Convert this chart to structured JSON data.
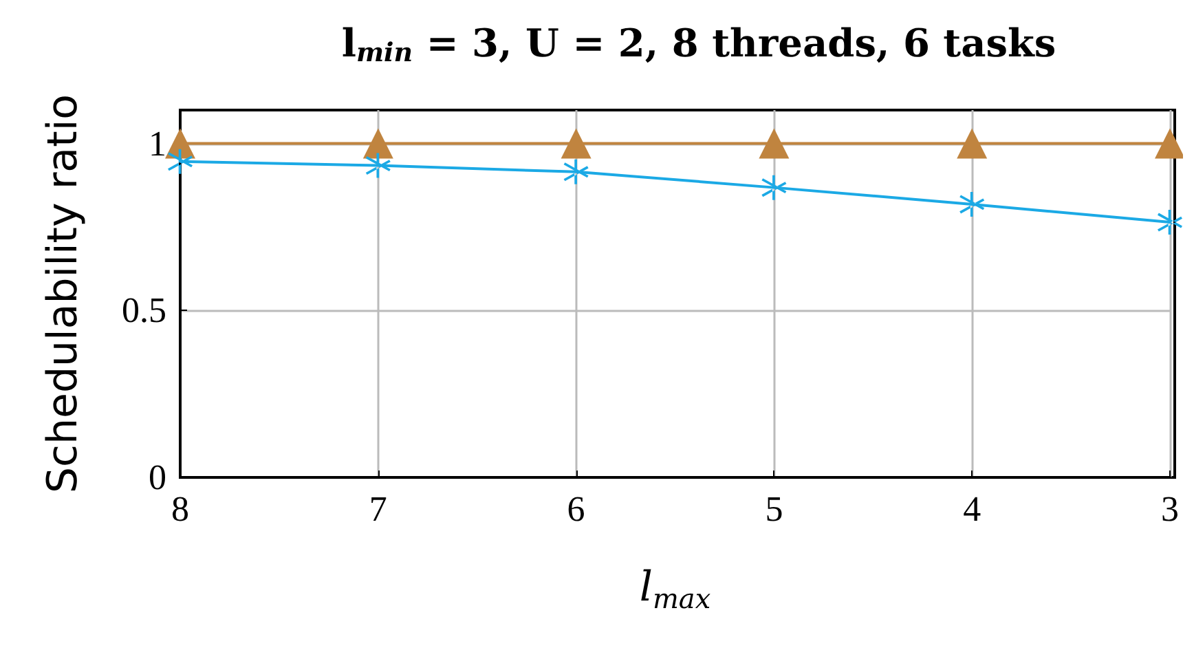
{
  "chart_data": {
    "type": "line",
    "title": "l$_{min}$ = 3, U = 2, 8 threads, 6 tasks",
    "xlabel": "l$_{max}$",
    "ylabel": "Schedulability ratio",
    "x": [
      8,
      7,
      6,
      5,
      4,
      3
    ],
    "xlim": [
      8,
      3
    ],
    "xticks": [
      8,
      7,
      6,
      5,
      4,
      3
    ],
    "ylim": [
      0,
      1.1
    ],
    "yticks": [
      0,
      0.5,
      1
    ],
    "grid": true,
    "series": [
      {
        "color": "#c0843f",
        "marker": "triangle",
        "values": [
          1,
          1,
          1,
          1,
          1,
          1
        ]
      },
      {
        "color": "#1ba9e5",
        "marker": "cross",
        "values": [
          0.946,
          0.934,
          0.915,
          0.868,
          0.818,
          0.764
        ]
      }
    ]
  }
}
